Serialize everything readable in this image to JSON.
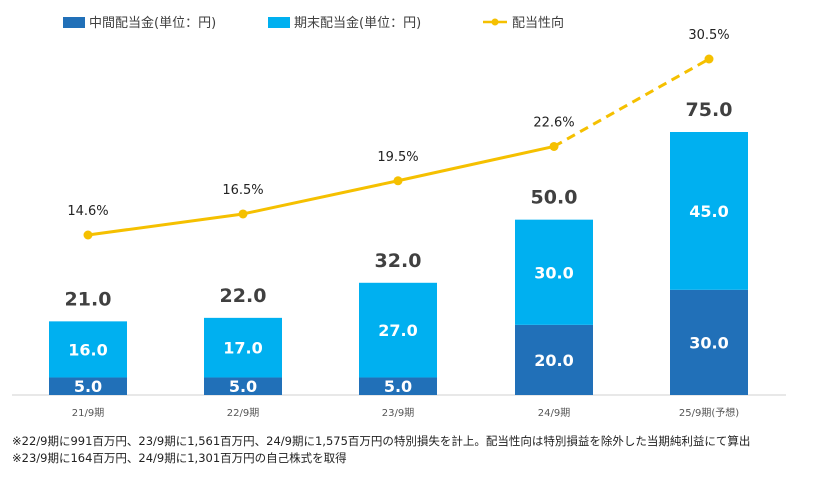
{
  "chart_data": {
    "type": "bar",
    "stacked": true,
    "categories": [
      "21/9期",
      "22/9期",
      "23/9期",
      "24/9期",
      "25/9期(予想)"
    ],
    "series": [
      {
        "name": "中間配当金(単位：円)",
        "values": [
          5.0,
          5.0,
          5.0,
          20.0,
          30.0
        ],
        "color": "#2170b8"
      },
      {
        "name": "期末配当金(単位：円)",
        "values": [
          16.0,
          17.0,
          27.0,
          30.0,
          45.0
        ],
        "color": "#00b0f0"
      }
    ],
    "segment_labels": {
      "interim": [
        "5.0",
        "5.0",
        "5.0",
        "20.0",
        "30.0"
      ],
      "year_end": [
        "16.0",
        "17.0",
        "27.0",
        "30.0",
        "45.0"
      ]
    },
    "totals": [
      21.0,
      22.0,
      32.0,
      50.0,
      75.0
    ],
    "total_labels": [
      "21.0",
      "22.0",
      "32.0",
      "50.0",
      "75.0"
    ],
    "line_series": {
      "name": "配当性向",
      "values": [
        14.6,
        16.5,
        19.5,
        22.6,
        30.5
      ],
      "labels": [
        "14.6%",
        "16.5%",
        "19.5%",
        "22.6%",
        "30.5%"
      ],
      "color": "#f5c000",
      "forecast_dashed_from_index": 3
    },
    "ylim": [
      0,
      75
    ],
    "line_ylim": [
      14.6,
      30.5
    ],
    "grid": false,
    "legend_position": "top-left"
  },
  "notes": [
    "※22/9期に991百万円、23/9期に1,561百万円、24/9期に1,575百万円の特別損失を計上。配当性向は特別損益を除外した当期純利益にて算出",
    "※23/9期に164百万円、24/9期に1,301百万円の自己株式を取得"
  ]
}
